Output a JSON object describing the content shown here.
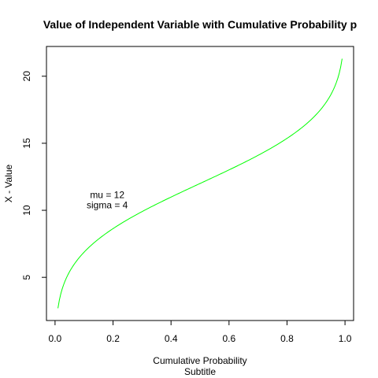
{
  "chart_data": {
    "type": "line",
    "title": "Value of Independent Variable with Cumulative Probability p",
    "xlabel": "Cumulative Probability",
    "subtitle": "Subtitle",
    "ylabel": "X - Value",
    "xlim": [
      -0.0296,
      1.0296
    ],
    "ylim": [
      1.78,
      22.22
    ],
    "xticks": [
      0.0,
      0.2,
      0.4,
      0.6,
      0.8,
      1.0
    ],
    "xtick_labels": [
      "0.0",
      "0.2",
      "0.4",
      "0.6",
      "0.8",
      "1.0"
    ],
    "yticks": [
      5,
      10,
      15,
      20
    ],
    "ytick_labels": [
      "5",
      "10",
      "15",
      "20"
    ],
    "grid": false,
    "annotations": [
      "mu = 12",
      "sigma = 4"
    ],
    "annotation_position": {
      "x": 0.18,
      "y": 10.9
    },
    "distribution": {
      "mu": 12,
      "sigma": 4,
      "p_min": 0.01,
      "p_max": 0.99
    },
    "series": [
      {
        "color": "#00ff00"
      }
    ]
  }
}
